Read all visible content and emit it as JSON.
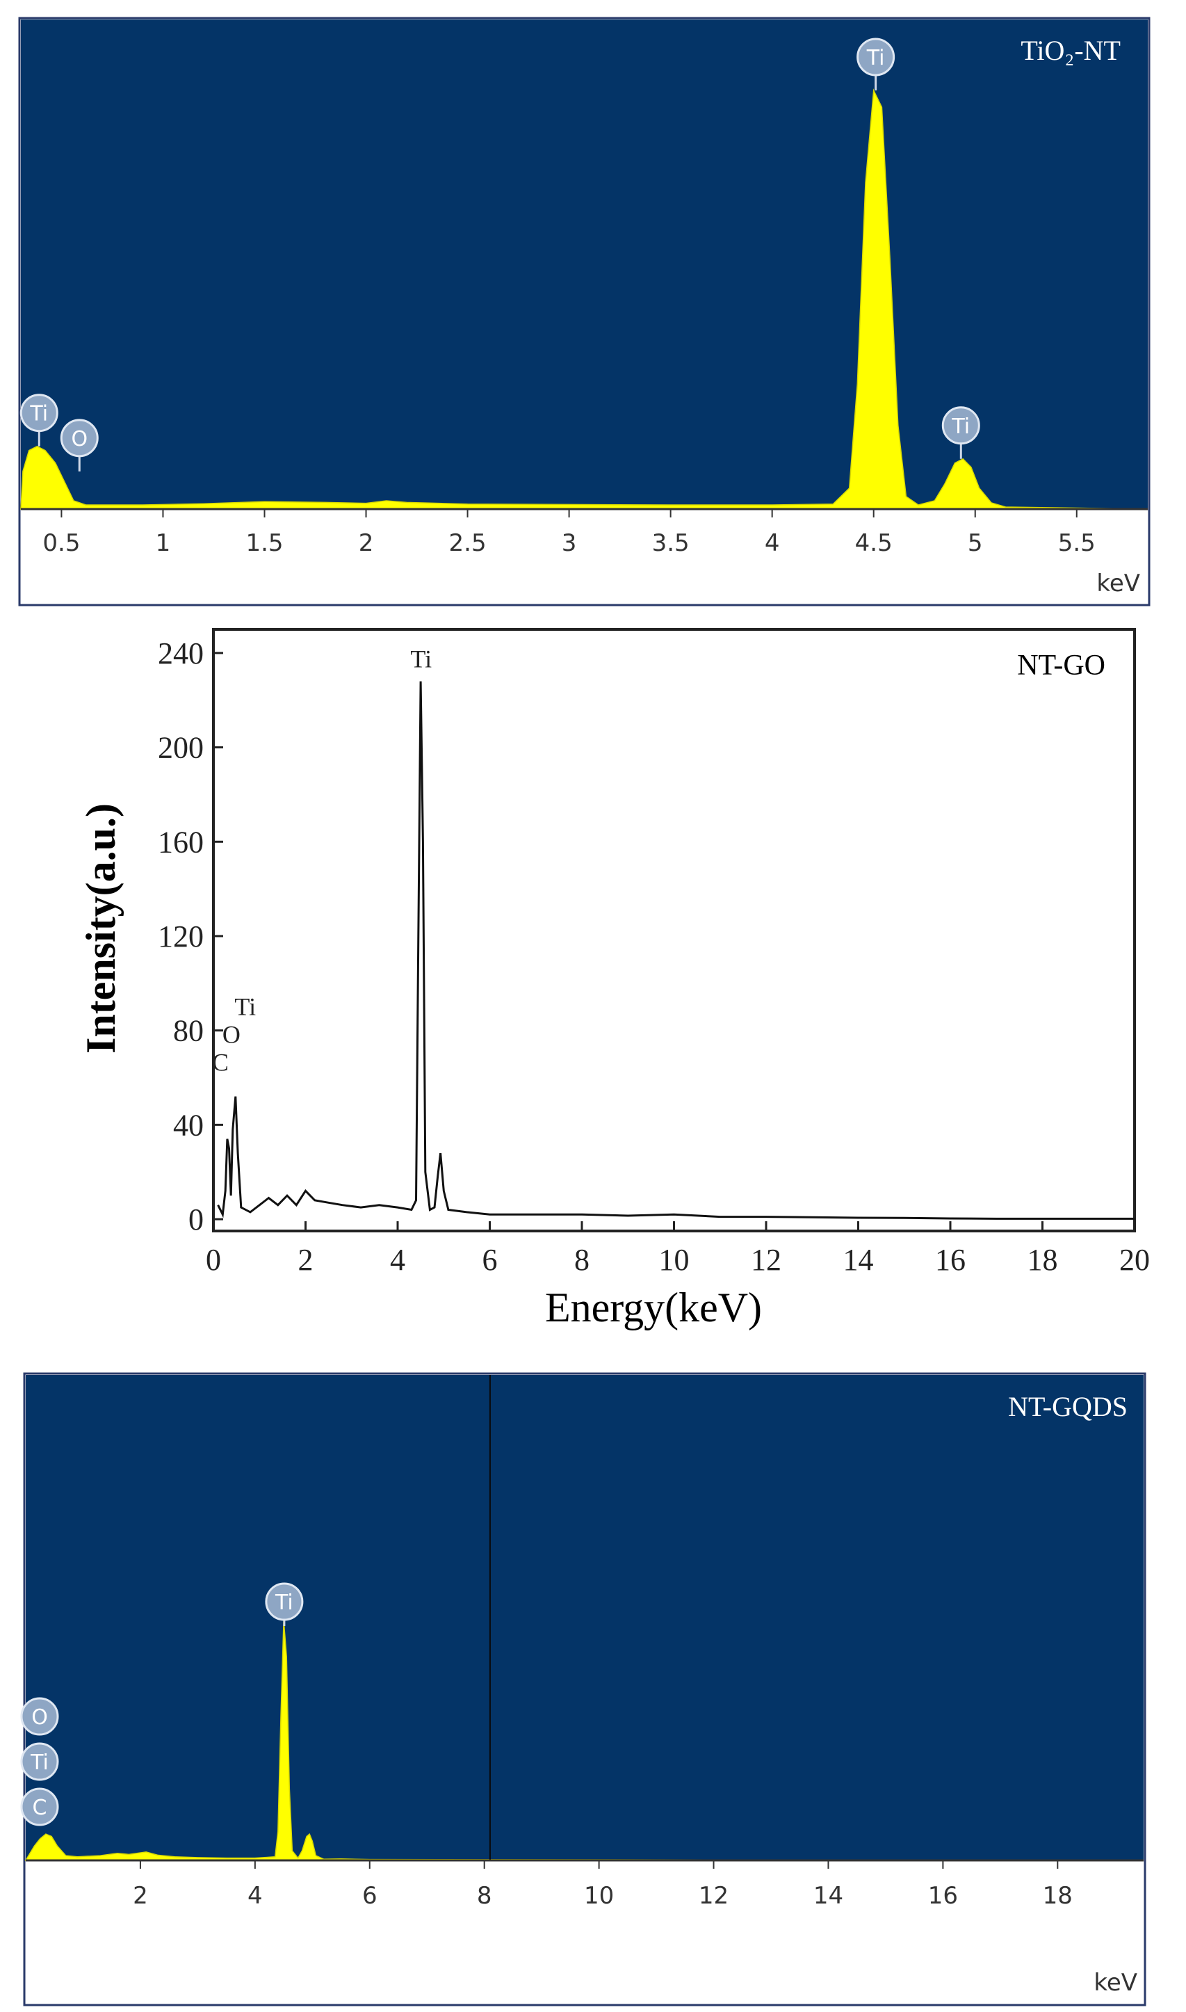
{
  "chart_data": [
    {
      "type": "area",
      "panel_label": "TiO₂-NT",
      "x_unit": "keV",
      "xlim": [
        0.3,
        5.85
      ],
      "ylim": [
        0,
        100
      ],
      "ticks": [
        {
          "value": 0.5,
          "label": "0.5"
        },
        {
          "value": 1,
          "label": "1"
        },
        {
          "value": 1.5,
          "label": "1.5"
        },
        {
          "value": 2,
          "label": "2"
        },
        {
          "value": 2.5,
          "label": "2.5"
        },
        {
          "value": 3,
          "label": "3"
        },
        {
          "value": 3.5,
          "label": "3.5"
        },
        {
          "value": 4,
          "label": "4"
        },
        {
          "value": 4.5,
          "label": "4.5"
        },
        {
          "value": 5,
          "label": "5"
        },
        {
          "value": 5.5,
          "label": "5.5"
        }
      ],
      "peaks": [
        {
          "x": 0.39,
          "y": 15,
          "label": "Ti"
        },
        {
          "x": 0.52,
          "y": 9,
          "label": "O"
        },
        {
          "x": 4.51,
          "y": 100,
          "label": "Ti"
        },
        {
          "x": 4.93,
          "y": 12,
          "label": "Ti"
        }
      ],
      "spectrum": [
        [
          0.3,
          0
        ],
        [
          0.31,
          9
        ],
        [
          0.34,
          14
        ],
        [
          0.38,
          15
        ],
        [
          0.42,
          14
        ],
        [
          0.47,
          11
        ],
        [
          0.52,
          6
        ],
        [
          0.56,
          2
        ],
        [
          0.62,
          1
        ],
        [
          0.7,
          1
        ],
        [
          0.9,
          1
        ],
        [
          1.2,
          1.3
        ],
        [
          1.5,
          1.8
        ],
        [
          1.8,
          1.6
        ],
        [
          2.0,
          1.4
        ],
        [
          2.1,
          2
        ],
        [
          2.2,
          1.6
        ],
        [
          2.5,
          1.2
        ],
        [
          3.0,
          1.1
        ],
        [
          3.5,
          1
        ],
        [
          4.0,
          1
        ],
        [
          4.3,
          1.2
        ],
        [
          4.38,
          5
        ],
        [
          4.42,
          30
        ],
        [
          4.46,
          78
        ],
        [
          4.5,
          100
        ],
        [
          4.54,
          96
        ],
        [
          4.58,
          60
        ],
        [
          4.62,
          20
        ],
        [
          4.66,
          3
        ],
        [
          4.72,
          1
        ],
        [
          4.8,
          2
        ],
        [
          4.85,
          6
        ],
        [
          4.9,
          11
        ],
        [
          4.94,
          12
        ],
        [
          4.98,
          10
        ],
        [
          5.02,
          5
        ],
        [
          5.08,
          1.5
        ],
        [
          5.15,
          0.5
        ],
        [
          5.85,
          0
        ]
      ],
      "colors": {
        "background": "#043467",
        "fill": "#ffff00",
        "axis_panel": "#ffffff"
      }
    },
    {
      "type": "line",
      "panel_label": "NT-GO",
      "xlabel": "Energy(keV)",
      "ylabel": "Intensity(a.u.)",
      "xlim": [
        0,
        20
      ],
      "ylim": [
        -5,
        250
      ],
      "xticks": [
        0,
        2,
        4,
        6,
        8,
        10,
        12,
        14,
        16,
        18,
        20
      ],
      "yticks": [
        0,
        40,
        80,
        120,
        160,
        200,
        240
      ],
      "peaks": [
        {
          "x": 0.3,
          "y": 32,
          "label": "C"
        },
        {
          "x": 0.42,
          "y": 45,
          "label": "O"
        },
        {
          "x": 0.48,
          "y": 50,
          "label": "Ti"
        },
        {
          "x": 4.51,
          "y": 228,
          "label": "Ti"
        },
        {
          "x": 4.93,
          "y": 28,
          "label": ""
        }
      ],
      "spectrum": [
        [
          0.1,
          6
        ],
        [
          0.2,
          2
        ],
        [
          0.26,
          12
        ],
        [
          0.3,
          34
        ],
        [
          0.34,
          30
        ],
        [
          0.38,
          10
        ],
        [
          0.42,
          38
        ],
        [
          0.48,
          52
        ],
        [
          0.53,
          28
        ],
        [
          0.6,
          5
        ],
        [
          0.8,
          3
        ],
        [
          1.0,
          6
        ],
        [
          1.2,
          9
        ],
        [
          1.4,
          6
        ],
        [
          1.6,
          10
        ],
        [
          1.8,
          6
        ],
        [
          2.0,
          12
        ],
        [
          2.1,
          10
        ],
        [
          2.2,
          8
        ],
        [
          2.5,
          7
        ],
        [
          2.8,
          6
        ],
        [
          3.2,
          5
        ],
        [
          3.6,
          6
        ],
        [
          4.0,
          5
        ],
        [
          4.3,
          4
        ],
        [
          4.4,
          8
        ],
        [
          4.45,
          120
        ],
        [
          4.5,
          228
        ],
        [
          4.55,
          160
        ],
        [
          4.6,
          20
        ],
        [
          4.7,
          4
        ],
        [
          4.8,
          5
        ],
        [
          4.87,
          18
        ],
        [
          4.93,
          28
        ],
        [
          5.0,
          12
        ],
        [
          5.1,
          4
        ],
        [
          5.5,
          3
        ],
        [
          6,
          2
        ],
        [
          7,
          2
        ],
        [
          8,
          2
        ],
        [
          9,
          1.5
        ],
        [
          10,
          2
        ],
        [
          11,
          1
        ],
        [
          12,
          1
        ],
        [
          13,
          0.8
        ],
        [
          14,
          0.6
        ],
        [
          15,
          0.5
        ],
        [
          16,
          0.3
        ],
        [
          17,
          0.2
        ],
        [
          18,
          0.2
        ],
        [
          20,
          0.2
        ]
      ]
    },
    {
      "type": "area",
      "panel_label": "NT-GQDS",
      "x_unit": "keV",
      "xlim": [
        0,
        19.5
      ],
      "ylim": [
        0,
        100
      ],
      "xticks": [
        2,
        4,
        6,
        8,
        10,
        12,
        14,
        16,
        18
      ],
      "cursor_x": 8.1,
      "peaks": [
        {
          "x": 0.22,
          "y": 9,
          "label": "C"
        },
        {
          "x": 0.35,
          "y": 14,
          "label": "Ti"
        },
        {
          "x": 0.52,
          "y": 22,
          "label": "O"
        },
        {
          "x": 4.51,
          "y": 100,
          "label": "Ti"
        },
        {
          "x": 4.93,
          "y": 11,
          "label": ""
        }
      ],
      "spectrum": [
        [
          0,
          0
        ],
        [
          0.05,
          2
        ],
        [
          0.15,
          6
        ],
        [
          0.25,
          9
        ],
        [
          0.35,
          11
        ],
        [
          0.45,
          10
        ],
        [
          0.55,
          6
        ],
        [
          0.7,
          2
        ],
        [
          0.9,
          1.5
        ],
        [
          1.3,
          2
        ],
        [
          1.6,
          3
        ],
        [
          1.8,
          2.5
        ],
        [
          2.1,
          3.5
        ],
        [
          2.3,
          2.2
        ],
        [
          2.6,
          1.5
        ],
        [
          3.0,
          1.2
        ],
        [
          3.5,
          1
        ],
        [
          4.0,
          1
        ],
        [
          4.35,
          1.5
        ],
        [
          4.4,
          12
        ],
        [
          4.45,
          60
        ],
        [
          4.5,
          100
        ],
        [
          4.55,
          85
        ],
        [
          4.6,
          30
        ],
        [
          4.65,
          4
        ],
        [
          4.75,
          1
        ],
        [
          4.82,
          4
        ],
        [
          4.9,
          10
        ],
        [
          4.95,
          11
        ],
        [
          5.0,
          8
        ],
        [
          5.06,
          2
        ],
        [
          5.2,
          0.5
        ],
        [
          5.5,
          0.6
        ],
        [
          6.0,
          0.4
        ],
        [
          19.5,
          0
        ]
      ],
      "colors": {
        "background": "#043467",
        "fill": "#ffff00",
        "axis_panel": "#ffffff"
      }
    }
  ]
}
